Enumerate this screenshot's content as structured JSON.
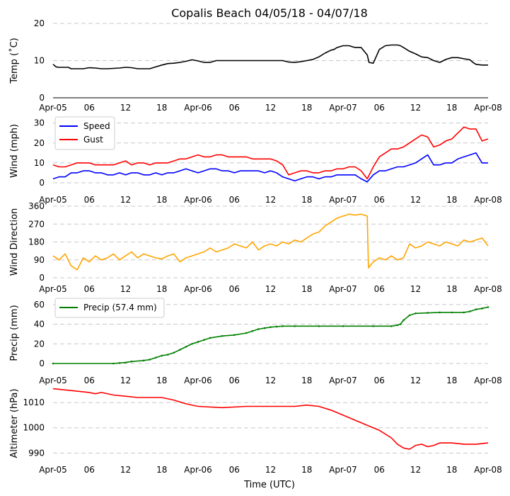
{
  "chart_data": {
    "title": "Copalis Beach 04/05/18 - 04/07/18",
    "xlabel": "Time (UTC)",
    "x_ticks": [
      "Apr-05",
      "06",
      "12",
      "18",
      "Apr-06",
      "06",
      "12",
      "18",
      "Apr-07",
      "06",
      "12",
      "18",
      "Apr-08"
    ],
    "x_unit": "hours since 2018-04-05 00:00 UTC",
    "x_range": [
      0,
      72
    ],
    "panels": [
      {
        "id": "temp",
        "type": "line",
        "ylabel": "Temp (˚C)",
        "ylim": [
          0,
          20
        ],
        "yticks": [
          0,
          10,
          20
        ],
        "grid": "horizontal dashed",
        "series": [
          {
            "name": "Temp",
            "color": "#000000",
            "x": [
              0,
              0.5,
              1,
              2.5,
              3,
              5,
              6,
              7,
              8,
              9,
              11,
              12,
              13,
              14,
              16,
              17,
              18,
              19,
              20,
              21,
              22,
              23,
              24,
              25,
              26,
              27,
              28,
              30,
              32,
              34,
              36,
              38,
              39,
              40,
              41,
              42,
              43,
              44,
              45,
              46,
              46.5,
              47,
              48,
              49,
              50,
              51,
              51.5,
              52,
              52.3,
              53,
              54,
              55,
              56,
              57,
              57.5,
              58,
              59,
              60,
              61,
              62,
              63,
              64,
              65,
              66,
              67,
              68,
              69,
              69.5,
              70,
              71,
              72
            ],
            "y": [
              9,
              8.3,
              8.2,
              8.2,
              7.8,
              7.8,
              8.1,
              8,
              7.8,
              7.8,
              8,
              8.2,
              8.1,
              7.8,
              7.8,
              8.3,
              8.8,
              9.2,
              9.3,
              9.5,
              9.8,
              10.2,
              9.9,
              9.5,
              9.5,
              10,
              10,
              10,
              10,
              10,
              10,
              10,
              9.6,
              9.5,
              9.7,
              10,
              10.3,
              11,
              12,
              12.8,
              13,
              13.5,
              14,
              14,
              13.5,
              13.5,
              12.5,
              11.5,
              9.5,
              9.3,
              13,
              14,
              14.2,
              14.2,
              14,
              13.5,
              12.5,
              11.8,
              11,
              10.8,
              10,
              9.5,
              10.3,
              10.8,
              10.8,
              10.5,
              10.2,
              9.5,
              9,
              8.8,
              8.8
            ]
          }
        ]
      },
      {
        "id": "wind",
        "type": "line",
        "ylabel": "Wind (mph)",
        "ylim": [
          0,
          32
        ],
        "yticks": [
          0,
          10,
          20,
          30
        ],
        "grid": "horizontal dashed",
        "legend": "top-left",
        "series": [
          {
            "name": "Speed",
            "color": "#0000ff",
            "x": [
              0,
              1,
              2,
              3,
              4,
              5,
              6,
              7,
              8,
              9,
              10,
              11,
              12,
              13,
              14,
              15,
              16,
              17,
              18,
              19,
              20,
              21,
              22,
              23,
              24,
              25,
              26,
              27,
              28,
              29,
              30,
              31,
              32,
              33,
              34,
              35,
              36,
              37,
              38,
              39,
              40,
              41,
              42,
              43,
              44,
              45,
              46,
              47,
              48,
              49,
              50,
              51,
              52,
              53,
              54,
              55,
              56,
              57,
              58,
              59,
              60,
              61,
              62,
              63,
              64,
              65,
              66,
              67,
              68,
              69,
              70,
              71,
              72
            ],
            "y": [
              2,
              3,
              3,
              5,
              5,
              6,
              6,
              5,
              5,
              4,
              4,
              5,
              4,
              5,
              5,
              4,
              4,
              5,
              4,
              5,
              5,
              6,
              7,
              6,
              5,
              6,
              7,
              7,
              6,
              6,
              5,
              6,
              6,
              6,
              6,
              5,
              6,
              5,
              3,
              2,
              1,
              2,
              3,
              3,
              2,
              3,
              3,
              4,
              4,
              4,
              4,
              2,
              0.5,
              4,
              6,
              6,
              7,
              8,
              8,
              9,
              10,
              12,
              14,
              9,
              9,
              10,
              10,
              12,
              13,
              14,
              15,
              10,
              10
            ]
          },
          {
            "name": "Gust",
            "color": "#ff0000",
            "x": [
              0,
              1,
              2,
              3,
              4,
              5,
              6,
              7,
              8,
              9,
              10,
              11,
              12,
              13,
              14,
              15,
              16,
              17,
              18,
              19,
              20,
              21,
              22,
              23,
              24,
              25,
              26,
              27,
              28,
              29,
              30,
              31,
              32,
              33,
              34,
              35,
              36,
              37,
              38,
              39,
              40,
              41,
              42,
              43,
              44,
              45,
              46,
              47,
              48,
              49,
              50,
              51,
              52,
              53,
              54,
              55,
              56,
              57,
              58,
              59,
              60,
              61,
              62,
              63,
              64,
              65,
              66,
              67,
              68,
              69,
              70,
              71,
              72
            ],
            "y": [
              9,
              8,
              8,
              9,
              10,
              10,
              10,
              9,
              9,
              9,
              9,
              10,
              11,
              9,
              10,
              10,
              9,
              10,
              10,
              10,
              11,
              12,
              12,
              13,
              14,
              13,
              13,
              14,
              14,
              13,
              13,
              13,
              13,
              12,
              12,
              12,
              12,
              11,
              9,
              4,
              5,
              6,
              6,
              5,
              5,
              6,
              6,
              7,
              7,
              8,
              8,
              6,
              2,
              8,
              13,
              15,
              17,
              17,
              18,
              20,
              22,
              24,
              23,
              18,
              19,
              21,
              22,
              25,
              28,
              27,
              27,
              21,
              22
            ]
          }
        ]
      },
      {
        "id": "wdir",
        "type": "line",
        "ylabel": "Wind Direction",
        "ylim": [
          0,
          360
        ],
        "yticks": [
          0,
          90,
          180,
          270,
          360
        ],
        "grid": "horizontal dashed",
        "series": [
          {
            "name": "Direction",
            "color": "#ffa500",
            "x": [
              0,
              1,
              2,
              3,
              4,
              5,
              6,
              7,
              8,
              9,
              10,
              11,
              12,
              13,
              14,
              15,
              16,
              17,
              18,
              19,
              20,
              21,
              22,
              23,
              24,
              25,
              26,
              27,
              28,
              29,
              30,
              31,
              32,
              33,
              34,
              35,
              36,
              37,
              38,
              39,
              40,
              41,
              42,
              43,
              44,
              45,
              46,
              47,
              48,
              49,
              50,
              51,
              52,
              52.2,
              53,
              54,
              55,
              56,
              57,
              58,
              59,
              60,
              61,
              62,
              63,
              64,
              65,
              66,
              67,
              68,
              69,
              70,
              71,
              72
            ],
            "y": [
              110,
              90,
              120,
              60,
              40,
              100,
              80,
              110,
              90,
              100,
              120,
              90,
              110,
              130,
              100,
              120,
              110,
              100,
              95,
              110,
              120,
              80,
              100,
              110,
              120,
              130,
              150,
              130,
              140,
              150,
              170,
              160,
              150,
              180,
              140,
              160,
              170,
              160,
              180,
              170,
              190,
              180,
              200,
              220,
              230,
              260,
              280,
              300,
              310,
              320,
              315,
              320,
              310,
              50,
              80,
              100,
              90,
              110,
              90,
              100,
              170,
              150,
              160,
              180,
              170,
              160,
              180,
              170,
              160,
              190,
              180,
              190,
              200,
              160
            ]
          }
        ]
      },
      {
        "id": "precip",
        "type": "line",
        "ylabel": "Precip (mm)",
        "ylim": [
          0,
          62
        ],
        "yticks": [
          0,
          20,
          40,
          60
        ],
        "grid": "horizontal dashed",
        "legend": "top-left",
        "series": [
          {
            "name": "Precip (57.4 mm)",
            "color": "#008000",
            "x": [
              0,
              10,
              11,
              12,
              13,
              15,
              16,
              17,
              18,
              19,
              20,
              21,
              22,
              23,
              24,
              25,
              26,
              28,
              30,
              32,
              33,
              34,
              35,
              36,
              37,
              38,
              40,
              44,
              48,
              53,
              56,
              57,
              57.5,
              58,
              59,
              60,
              62,
              64,
              66,
              68,
              69,
              70,
              71,
              72
            ],
            "y": [
              0,
              0,
              0.5,
              1,
              2,
              3,
              4,
              6,
              8,
              9,
              11,
              14,
              17,
              20,
              22,
              24,
              26,
              28,
              29,
              31,
              33,
              35,
              36,
              37,
              37.5,
              38,
              38,
              38,
              38,
              38,
              38,
              39,
              40,
              44,
              49,
              51,
              51.5,
              52,
              52,
              52,
              53,
              55,
              56,
              57.4
            ]
          }
        ]
      },
      {
        "id": "altim",
        "type": "line",
        "ylabel": "Altimeter (hPa)",
        "ylim": [
          987,
          1016.5
        ],
        "yticks": [
          990,
          1000,
          1010
        ],
        "grid": "horizontal dashed",
        "series": [
          {
            "name": "Altimeter",
            "color": "#ff0000",
            "x": [
              0,
              2,
              4,
              6,
              7,
              8,
              10,
              12,
              14,
              18,
              20,
              22,
              24,
              28,
              32,
              36,
              40,
              42,
              44,
              46,
              48,
              50,
              52,
              54,
              56,
              57,
              58,
              59,
              60,
              61,
              62,
              63,
              64,
              66,
              68,
              70,
              72
            ],
            "y": [
              1015.5,
              1015,
              1014.5,
              1014,
              1013.5,
              1014,
              1013,
              1012.5,
              1012,
              1012,
              1011,
              1009.5,
              1008.5,
              1008,
              1008.5,
              1008.5,
              1008.5,
              1009,
              1008.5,
              1007,
              1005,
              1003,
              1001,
              999,
              996,
              993.5,
              992,
              991.5,
              993,
              993.5,
              992.5,
              993,
              994,
              994,
              993.5,
              993.5,
              994
            ]
          }
        ]
      }
    ]
  }
}
